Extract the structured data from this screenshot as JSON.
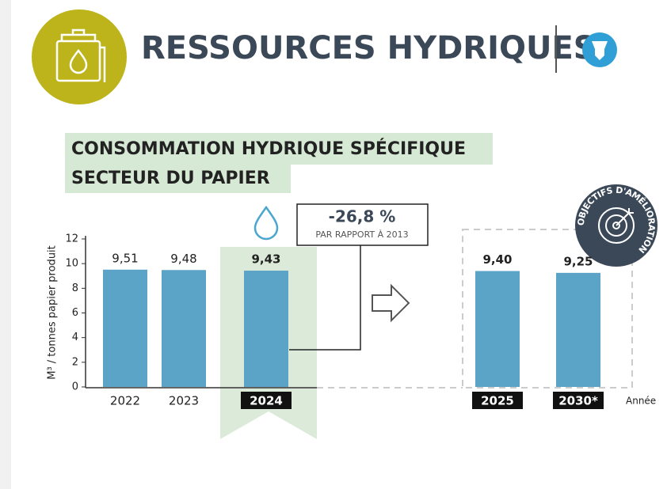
{
  "header": {
    "title": "RESSOURCES HYDRIQUES"
  },
  "chart_data": {
    "type": "bar",
    "subtitle": [
      "CONSOMMATION HYDRIQUE SPÉCIFIQUE",
      "SECTEUR DU PAPIER"
    ],
    "y_label": "M³ / tonnes papier produit",
    "x_label": "Année",
    "categories": [
      "2022",
      "2023",
      "2024",
      "2025",
      "2030*"
    ],
    "values": [
      9.51,
      9.48,
      9.43,
      9.4,
      9.25
    ],
    "value_labels": [
      "9,51",
      "9,48",
      "9,43",
      "9,40",
      "9,25"
    ],
    "color": "#5ba3c7",
    "ylim": [
      0,
      12
    ],
    "yticks": [
      0,
      2,
      4,
      6,
      8,
      10,
      12
    ],
    "annotation": {
      "value": "-26,8 %",
      "text": "PAR RAPPORT À 2013"
    },
    "badge": "OBJECTIFS D'AMÉLIORATION"
  }
}
